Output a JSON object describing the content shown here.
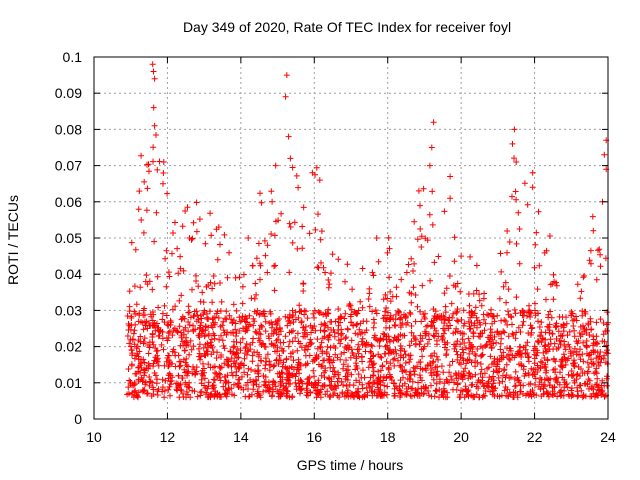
{
  "chart_data": {
    "type": "scatter",
    "title": "Day 349 of 2020, Rate Of TEC Index for receiver foyl",
    "xlabel": "GPS time / hours",
    "ylabel": "ROTI / TECUs",
    "xlim": [
      10,
      24
    ],
    "ylim": [
      0,
      0.1
    ],
    "xticks": [
      10,
      12,
      14,
      16,
      18,
      20,
      22,
      24
    ],
    "yticks": [
      0,
      0.01,
      0.02,
      0.03,
      0.04,
      0.05,
      0.06,
      0.07,
      0.08,
      0.09,
      0.1
    ],
    "xtick_labels": [
      "10",
      "12",
      "14",
      "16",
      "18",
      "20",
      "22",
      "24"
    ],
    "ytick_labels": [
      "0",
      "0.01",
      "0.02",
      "0.03",
      "0.04",
      "0.05",
      "0.06",
      "0.07",
      "0.08",
      "0.09",
      "0.1"
    ],
    "grid": true,
    "marker": "+",
    "color": "#ff0000",
    "series": [
      {
        "name": "ROTI",
        "x_range": [
          10.9,
          24.0
        ],
        "baseline_range": [
          0.006,
          0.03
        ],
        "notable_points": [
          {
            "x": 11.6,
            "y": 0.098
          },
          {
            "x": 11.62,
            "y": 0.096
          },
          {
            "x": 11.65,
            "y": 0.094
          },
          {
            "x": 11.65,
            "y": 0.081
          },
          {
            "x": 11.9,
            "y": 0.071
          },
          {
            "x": 11.88,
            "y": 0.065
          },
          {
            "x": 11.7,
            "y": 0.057
          },
          {
            "x": 15.25,
            "y": 0.095
          },
          {
            "x": 15.22,
            "y": 0.089
          },
          {
            "x": 15.3,
            "y": 0.078
          },
          {
            "x": 15.35,
            "y": 0.072
          },
          {
            "x": 14.95,
            "y": 0.07
          },
          {
            "x": 15.95,
            "y": 0.068
          },
          {
            "x": 16.15,
            "y": 0.066
          },
          {
            "x": 14.85,
            "y": 0.06
          },
          {
            "x": 19.25,
            "y": 0.082
          },
          {
            "x": 19.2,
            "y": 0.075
          },
          {
            "x": 19.15,
            "y": 0.07
          },
          {
            "x": 18.85,
            "y": 0.063
          },
          {
            "x": 19.7,
            "y": 0.067
          },
          {
            "x": 19.7,
            "y": 0.061
          },
          {
            "x": 21.45,
            "y": 0.08
          },
          {
            "x": 21.4,
            "y": 0.076
          },
          {
            "x": 21.5,
            "y": 0.071
          },
          {
            "x": 21.95,
            "y": 0.068
          },
          {
            "x": 21.95,
            "y": 0.064
          },
          {
            "x": 23.95,
            "y": 0.077
          },
          {
            "x": 23.9,
            "y": 0.073
          },
          {
            "x": 23.95,
            "y": 0.069
          },
          {
            "x": 23.85,
            "y": 0.06
          },
          {
            "x": 14.2,
            "y": 0.05
          },
          {
            "x": 17.7,
            "y": 0.05
          },
          {
            "x": 13.4,
            "y": 0.053
          },
          {
            "x": 12.6,
            "y": 0.05
          },
          {
            "x": 20.0,
            "y": 0.045
          },
          {
            "x": 23.6,
            "y": 0.052
          }
        ]
      }
    ]
  }
}
